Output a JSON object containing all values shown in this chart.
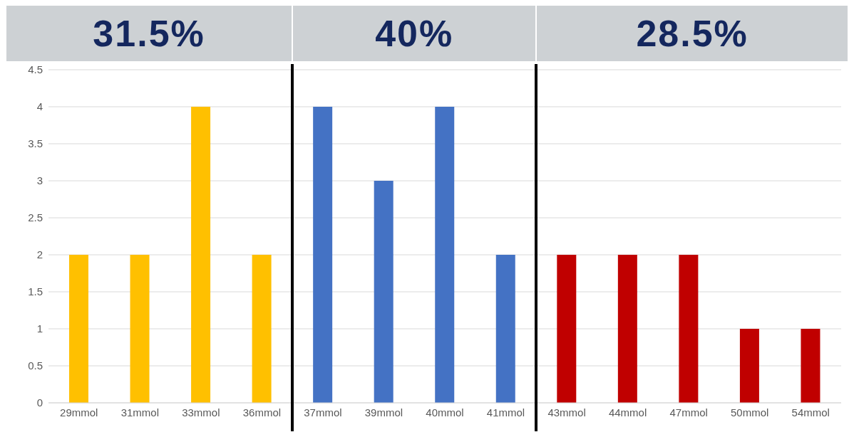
{
  "chart_data": {
    "type": "bar",
    "categories": [
      "29mmol",
      "31mmol",
      "33mmol",
      "36mmol",
      "37mmol",
      "39mmol",
      "40mmol",
      "41mmol",
      "43mmol",
      "44mmol",
      "47mmol",
      "50mmol",
      "54mmol"
    ],
    "values": [
      2,
      2,
      4,
      2,
      4,
      3,
      4,
      2,
      2,
      2,
      2,
      1,
      1
    ],
    "colors": [
      "#ffc000",
      "#ffc000",
      "#ffc000",
      "#ffc000",
      "#4472c4",
      "#4472c4",
      "#4472c4",
      "#4472c4",
      "#c00000",
      "#c00000",
      "#c00000",
      "#c00000",
      "#c00000"
    ],
    "ylim": [
      0,
      4.5
    ],
    "yticks": [
      0,
      0.5,
      1,
      1.5,
      2,
      2.5,
      3,
      3.5,
      4,
      4.5
    ],
    "grid": "y",
    "annotations": [
      "31.5%",
      "40%",
      "28.5%"
    ]
  }
}
